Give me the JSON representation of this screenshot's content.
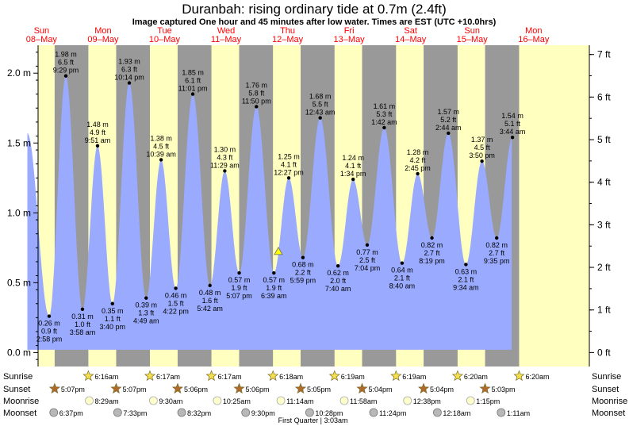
{
  "title": "Duranbah: rising  ordinary tide at 0.7m (2.4ft)",
  "subtitle": "Image captured One hour and 45 minutes after low water. Times are EST (UTC +10.0hrs)",
  "colors": {
    "day_bg": "#ffffc0",
    "night_bg": "#999999",
    "tide_fill": "#99aaff",
    "day_label": "#ff0000"
  },
  "chart_data": {
    "type": "area",
    "title": "Duranbah: rising  ordinary tide at 0.7m (2.4ft)",
    "left_axis": {
      "unit": "m",
      "range": [
        -0.1,
        2.2
      ],
      "ticks": [
        "0.0 m",
        "0.5 m",
        "1.0 m",
        "1.5 m",
        "2.0 m"
      ]
    },
    "right_axis": {
      "unit": "ft",
      "ticks": [
        "0 ft",
        "1 ft",
        "2 ft",
        "3 ft",
        "4 ft",
        "5 ft",
        "6 ft",
        "7 ft"
      ]
    },
    "days": [
      {
        "dow": "Sun",
        "date": "08–May"
      },
      {
        "dow": "Mon",
        "date": "09–May"
      },
      {
        "dow": "Tue",
        "date": "10–May"
      },
      {
        "dow": "Wed",
        "date": "11–May"
      },
      {
        "dow": "Thu",
        "date": "12–May"
      },
      {
        "dow": "Fri",
        "date": "13–May"
      },
      {
        "dow": "Sat",
        "date": "14–May"
      },
      {
        "dow": "Sun",
        "date": "15–May"
      },
      {
        "dow": "Mon",
        "date": "16–May"
      }
    ],
    "tides": [
      {
        "day": 0,
        "time": "2:58 pm",
        "m": 0.26,
        "m_label": "0.26 m",
        "ft_label": "0.9 ft",
        "type": "low"
      },
      {
        "day": 0,
        "time": "9:29 pm",
        "m": 1.98,
        "m_label": "1.98 m",
        "ft_label": "6.5 ft",
        "type": "high"
      },
      {
        "day": 1,
        "time": "3:58 am",
        "m": 0.31,
        "m_label": "0.31 m",
        "ft_label": "1.0 ft",
        "type": "low"
      },
      {
        "day": 1,
        "time": "9:51 am",
        "m": 1.48,
        "m_label": "1.48 m",
        "ft_label": "4.9 ft",
        "type": "high"
      },
      {
        "day": 1,
        "time": "3:40 pm",
        "m": 0.35,
        "m_label": "0.35 m",
        "ft_label": "1.1 ft",
        "type": "low"
      },
      {
        "day": 1,
        "time": "10:14 pm",
        "m": 1.93,
        "m_label": "1.93 m",
        "ft_label": "6.3 ft",
        "type": "high"
      },
      {
        "day": 2,
        "time": "4:49 am",
        "m": 0.39,
        "m_label": "0.39 m",
        "ft_label": "1.3 ft",
        "type": "low"
      },
      {
        "day": 2,
        "time": "10:39 am",
        "m": 1.38,
        "m_label": "1.38 m",
        "ft_label": "4.5 ft",
        "type": "high"
      },
      {
        "day": 2,
        "time": "4:22 pm",
        "m": 0.46,
        "m_label": "0.46 m",
        "ft_label": "1.5 ft",
        "type": "low"
      },
      {
        "day": 2,
        "time": "11:01 pm",
        "m": 1.85,
        "m_label": "1.85 m",
        "ft_label": "6.1 ft",
        "type": "high"
      },
      {
        "day": 3,
        "time": "5:42 am",
        "m": 0.48,
        "m_label": "0.48 m",
        "ft_label": "1.6 ft",
        "type": "low"
      },
      {
        "day": 3,
        "time": "11:29 am",
        "m": 1.3,
        "m_label": "1.30 m",
        "ft_label": "4.3 ft",
        "type": "high"
      },
      {
        "day": 3,
        "time": "5:07 pm",
        "m": 0.57,
        "m_label": "0.57 m",
        "ft_label": "1.9 ft",
        "type": "low"
      },
      {
        "day": 3,
        "time": "11:50 pm",
        "m": 1.76,
        "m_label": "1.76 m",
        "ft_label": "5.8 ft",
        "type": "high"
      },
      {
        "day": 4,
        "time": "6:39 am",
        "m": 0.57,
        "m_label": "0.57 m",
        "ft_label": "1.9 ft",
        "type": "low"
      },
      {
        "day": 4,
        "time": "12:27 pm",
        "m": 1.25,
        "m_label": "1.25 m",
        "ft_label": "4.1 ft",
        "type": "high"
      },
      {
        "day": 4,
        "time": "5:59 pm",
        "m": 0.68,
        "m_label": "0.68 m",
        "ft_label": "2.2 ft",
        "type": "low"
      },
      {
        "day": 5,
        "time": "12:43 am",
        "m": 1.68,
        "m_label": "1.68 m",
        "ft_label": "5.5 ft",
        "type": "high"
      },
      {
        "day": 5,
        "time": "7:40 am",
        "m": 0.62,
        "m_label": "0.62 m",
        "ft_label": "2.0 ft",
        "type": "low"
      },
      {
        "day": 5,
        "time": "1:34 pm",
        "m": 1.24,
        "m_label": "1.24 m",
        "ft_label": "4.1 ft",
        "type": "high"
      },
      {
        "day": 5,
        "time": "7:04 pm",
        "m": 0.77,
        "m_label": "0.77 m",
        "ft_label": "2.5 ft",
        "type": "low"
      },
      {
        "day": 6,
        "time": "1:42 am",
        "m": 1.61,
        "m_label": "1.61 m",
        "ft_label": "5.3 ft",
        "type": "high"
      },
      {
        "day": 6,
        "time": "8:40 am",
        "m": 0.64,
        "m_label": "0.64 m",
        "ft_label": "2.1 ft",
        "type": "low"
      },
      {
        "day": 6,
        "time": "2:45 pm",
        "m": 1.28,
        "m_label": "1.28 m",
        "ft_label": "4.2 ft",
        "type": "high"
      },
      {
        "day": 6,
        "time": "8:19 pm",
        "m": 0.82,
        "m_label": "0.82 m",
        "ft_label": "2.7 ft",
        "type": "low"
      },
      {
        "day": 7,
        "time": "2:44 am",
        "m": 1.57,
        "m_label": "1.57 m",
        "ft_label": "5.2 ft",
        "type": "high"
      },
      {
        "day": 7,
        "time": "9:34 am",
        "m": 0.63,
        "m_label": "0.63 m",
        "ft_label": "2.1 ft",
        "type": "low"
      },
      {
        "day": 7,
        "time": "3:50 pm",
        "m": 1.37,
        "m_label": "1.37 m",
        "ft_label": "4.5 ft",
        "type": "high"
      },
      {
        "day": 7,
        "time": "9:35 pm",
        "m": 0.82,
        "m_label": "0.82 m",
        "ft_label": "2.7 ft",
        "type": "low"
      },
      {
        "day": 8,
        "time": "3:44 am",
        "m": 1.54,
        "m_label": "1.54 m",
        "ft_label": "5.1 ft",
        "type": "high"
      }
    ],
    "current": {
      "day": 4,
      "time": "8:24 am",
      "m": 0.73,
      "label": "rising"
    },
    "sun_moon": {
      "row_labels": [
        "Sunrise",
        "Sunset",
        "Moonrise",
        "Moonset"
      ],
      "sunrise": [
        {
          "day": 1,
          "time": "6:16am"
        },
        {
          "day": 2,
          "time": "6:17am"
        },
        {
          "day": 3,
          "time": "6:17am"
        },
        {
          "day": 4,
          "time": "6:18am"
        },
        {
          "day": 5,
          "time": "6:19am"
        },
        {
          "day": 6,
          "time": "6:19am"
        },
        {
          "day": 7,
          "time": "6:20am"
        },
        {
          "day": 8,
          "time": "6:20am"
        }
      ],
      "sunset": [
        {
          "day": 0,
          "time": "5:07pm"
        },
        {
          "day": 1,
          "time": "5:07pm"
        },
        {
          "day": 2,
          "time": "5:06pm"
        },
        {
          "day": 3,
          "time": "5:06pm"
        },
        {
          "day": 4,
          "time": "5:05pm"
        },
        {
          "day": 5,
          "time": "5:04pm"
        },
        {
          "day": 6,
          "time": "5:04pm"
        },
        {
          "day": 7,
          "time": "5:03pm"
        }
      ],
      "moonrise": [
        {
          "day": 1,
          "time": "8:29am"
        },
        {
          "day": 2,
          "time": "9:30am"
        },
        {
          "day": 3,
          "time": "10:25am"
        },
        {
          "day": 4,
          "time": "11:14am"
        },
        {
          "day": 5,
          "time": "11:58am"
        },
        {
          "day": 6,
          "time": "12:38pm"
        },
        {
          "day": 7,
          "time": "1:15pm"
        }
      ],
      "moonset": [
        {
          "day": 0,
          "time": "6:37pm"
        },
        {
          "day": 1,
          "time": "7:33pm"
        },
        {
          "day": 2,
          "time": "8:32pm"
        },
        {
          "day": 3,
          "time": "9:30pm"
        },
        {
          "day": 4,
          "time": "10:28pm"
        },
        {
          "day": 5,
          "time": "11:24pm"
        },
        {
          "day": 7,
          "time": "12:18am"
        },
        {
          "day": 8,
          "time": "1:11am"
        }
      ],
      "moon_phase": "First Quarter | 3:03am"
    }
  }
}
